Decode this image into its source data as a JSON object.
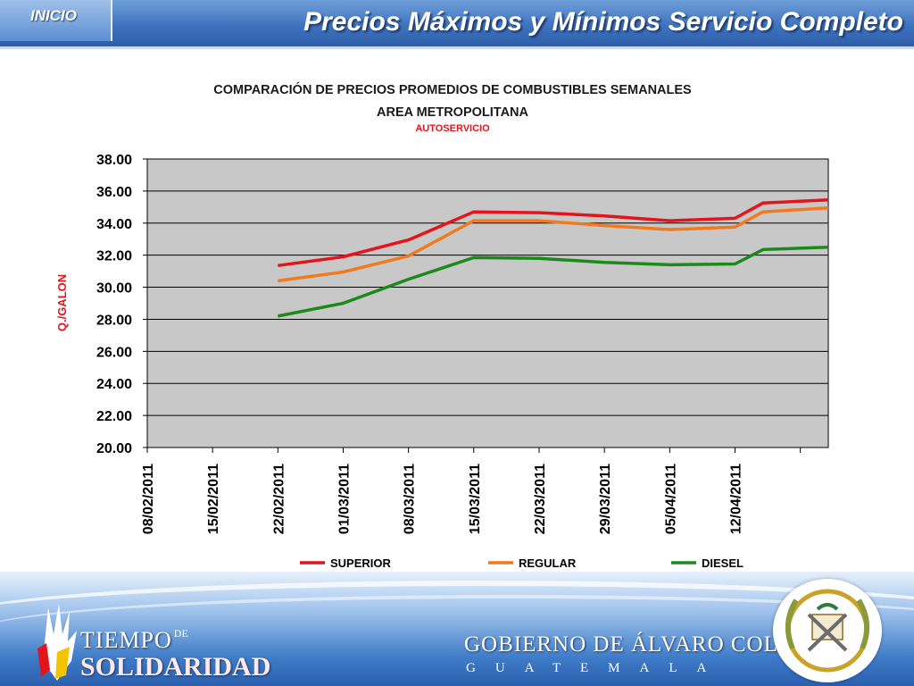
{
  "header": {
    "inicio_label": "INICIO",
    "title": "Precios Máximos y Mínimos Servicio Completo"
  },
  "chart_data": {
    "type": "line",
    "title": "COMPARACIÓN DE PRECIOS PROMEDIOS DE COMBUSTIBLES SEMANALES",
    "subtitle": "AREA METROPOLITANA",
    "subtitle2": "AUTOSERVICIO",
    "ylabel": "Q./GALON",
    "xlabel": "",
    "ylim": [
      20,
      38
    ],
    "ytick_step": 2,
    "y_ticks": [
      "20.00",
      "22.00",
      "24.00",
      "26.00",
      "28.00",
      "30.00",
      "32.00",
      "34.00",
      "36.00",
      "38.00"
    ],
    "x_ticks": [
      "08/02/2011",
      "15/02/2011",
      "22/02/2011",
      "01/03/2011",
      "08/03/2011",
      "15/03/2011",
      "22/03/2011",
      "29/03/2011",
      "05/04/2011",
      "12/04/2011"
    ],
    "x_start": "2011-02-08",
    "x_end": "2011-04-22",
    "grid": true,
    "legend_position": "bottom",
    "series": [
      {
        "name": "SUPERIOR",
        "color": "#e3151c",
        "points": [
          [
            "2011-02-22",
            31.35
          ],
          [
            "2011-03-01",
            31.9
          ],
          [
            "2011-03-08",
            32.95
          ],
          [
            "2011-03-15",
            34.7
          ],
          [
            "2011-03-22",
            34.65
          ],
          [
            "2011-03-29",
            34.45
          ],
          [
            "2011-04-05",
            34.15
          ],
          [
            "2011-04-12",
            34.3
          ],
          [
            "2011-04-15",
            35.25
          ],
          [
            "2011-04-22",
            35.45
          ]
        ]
      },
      {
        "name": "REGULAR",
        "color": "#f27a1e",
        "points": [
          [
            "2011-02-22",
            30.4
          ],
          [
            "2011-03-01",
            30.95
          ],
          [
            "2011-03-08",
            31.95
          ],
          [
            "2011-03-15",
            34.15
          ],
          [
            "2011-03-22",
            34.15
          ],
          [
            "2011-03-29",
            33.85
          ],
          [
            "2011-04-05",
            33.6
          ],
          [
            "2011-04-12",
            33.75
          ],
          [
            "2011-04-15",
            34.7
          ],
          [
            "2011-04-22",
            34.95
          ]
        ]
      },
      {
        "name": "DIESEL",
        "color": "#1b8a1b",
        "points": [
          [
            "2011-02-22",
            28.2
          ],
          [
            "2011-03-01",
            29.0
          ],
          [
            "2011-03-08",
            30.5
          ],
          [
            "2011-03-15",
            31.85
          ],
          [
            "2011-03-22",
            31.8
          ],
          [
            "2011-03-29",
            31.55
          ],
          [
            "2011-04-05",
            31.4
          ],
          [
            "2011-04-12",
            31.45
          ],
          [
            "2011-04-15",
            32.35
          ],
          [
            "2011-04-22",
            32.5
          ]
        ]
      }
    ]
  },
  "footer": {
    "brand_line1": "TIEMPO",
    "brand_de": "DE",
    "brand_line2": "SOLIDARIDAD",
    "gov_line1": "GOBIERNO DE ÁLVARO COLOM",
    "gov_line2": "GUATEMALA"
  }
}
